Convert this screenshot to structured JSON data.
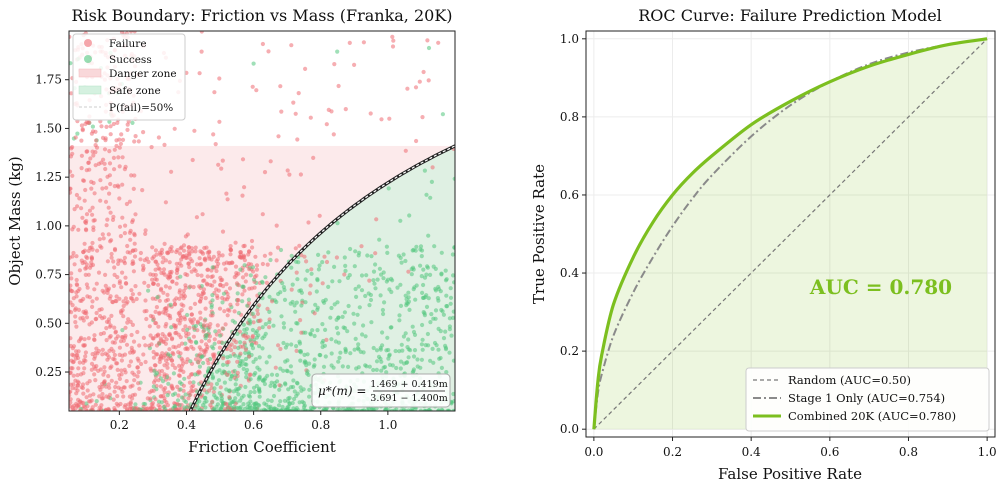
{
  "chart_data": [
    {
      "type": "scatter",
      "title": "Risk Boundary: Friction vs Mass (Franka, 20K)",
      "xlabel": "Friction Coefficient",
      "ylabel": "Object Mass (kg)",
      "xlim": [
        0.05,
        1.2
      ],
      "ylim": [
        0.05,
        2.0
      ],
      "xticks": [
        "0.2",
        "0.4",
        "0.6",
        "0.8",
        "1.0"
      ],
      "xtick_values": [
        0.2,
        0.4,
        0.6,
        0.8,
        1.0
      ],
      "yticks": [
        "0.25",
        "0.50",
        "0.75",
        "1.00",
        "1.25",
        "1.50",
        "1.75"
      ],
      "ytick_values": [
        0.25,
        0.5,
        0.75,
        1.0,
        1.25,
        1.5,
        1.75
      ],
      "legend_position": "top-left",
      "legend": [
        {
          "label": "Failure",
          "kind": "point",
          "color": "#ef6b73"
        },
        {
          "label": "Success",
          "kind": "point",
          "color": "#52c77e"
        },
        {
          "label": "Danger zone",
          "kind": "patch",
          "color": "#f9d8da"
        },
        {
          "label": "Safe zone",
          "kind": "patch",
          "color": "#d5f1e0"
        },
        {
          "label": "P(fail)=50%",
          "kind": "line",
          "color": "#333333"
        }
      ],
      "danger_zone_ymax": 1.41,
      "boundary": {
        "a": 1.469,
        "b": 0.419,
        "c": 3.691,
        "d": 1.4
      },
      "formula_lhs": "μ*(m) = ",
      "formula_num": "1.469 + 0.419m",
      "formula_den": "3.691 − 1.400m",
      "point_count_shown": 2600
    },
    {
      "type": "line",
      "title": "ROC Curve: Failure Prediction Model",
      "xlabel": "False Positive Rate",
      "ylabel": "True Positive Rate",
      "xlim": [
        -0.02,
        1.02
      ],
      "ylim": [
        -0.02,
        1.02
      ],
      "xticks": [
        "0.0",
        "0.2",
        "0.4",
        "0.6",
        "0.8",
        "1.0"
      ],
      "xtick_values": [
        0,
        0.2,
        0.4,
        0.6,
        0.8,
        1.0
      ],
      "yticks": [
        "0.0",
        "0.2",
        "0.4",
        "0.6",
        "0.8",
        "1.0"
      ],
      "ytick_values": [
        0,
        0.2,
        0.4,
        0.6,
        0.8,
        1.0
      ],
      "legend_position": "lower-right",
      "annotation": "AUC = 0.780",
      "series": [
        {
          "name": "Random (AUC=0.50)",
          "style": "dashed",
          "color": "#777777",
          "x": [
            0,
            1
          ],
          "y": [
            0,
            1
          ]
        },
        {
          "name": "Stage 1 Only (AUC=0.754)",
          "style": "dashdot",
          "color": "#8a8a8a",
          "x": [
            0,
            0.01,
            0.02,
            0.05,
            0.1,
            0.15,
            0.2,
            0.25,
            0.3,
            0.4,
            0.5,
            0.6,
            0.7,
            0.8,
            0.9,
            1.0
          ],
          "y": [
            0,
            0.09,
            0.14,
            0.24,
            0.35,
            0.44,
            0.52,
            0.59,
            0.65,
            0.75,
            0.83,
            0.89,
            0.935,
            0.965,
            0.985,
            1.0
          ]
        },
        {
          "name": "Combined 20K (AUC=0.780)",
          "style": "solid",
          "color": "#7cbf1f",
          "x": [
            0,
            0.01,
            0.02,
            0.05,
            0.1,
            0.15,
            0.2,
            0.25,
            0.3,
            0.4,
            0.5,
            0.6,
            0.7,
            0.8,
            0.9,
            1.0
          ],
          "y": [
            0,
            0.12,
            0.19,
            0.32,
            0.44,
            0.53,
            0.6,
            0.655,
            0.7,
            0.78,
            0.84,
            0.89,
            0.93,
            0.96,
            0.985,
            1.0
          ]
        }
      ]
    }
  ]
}
